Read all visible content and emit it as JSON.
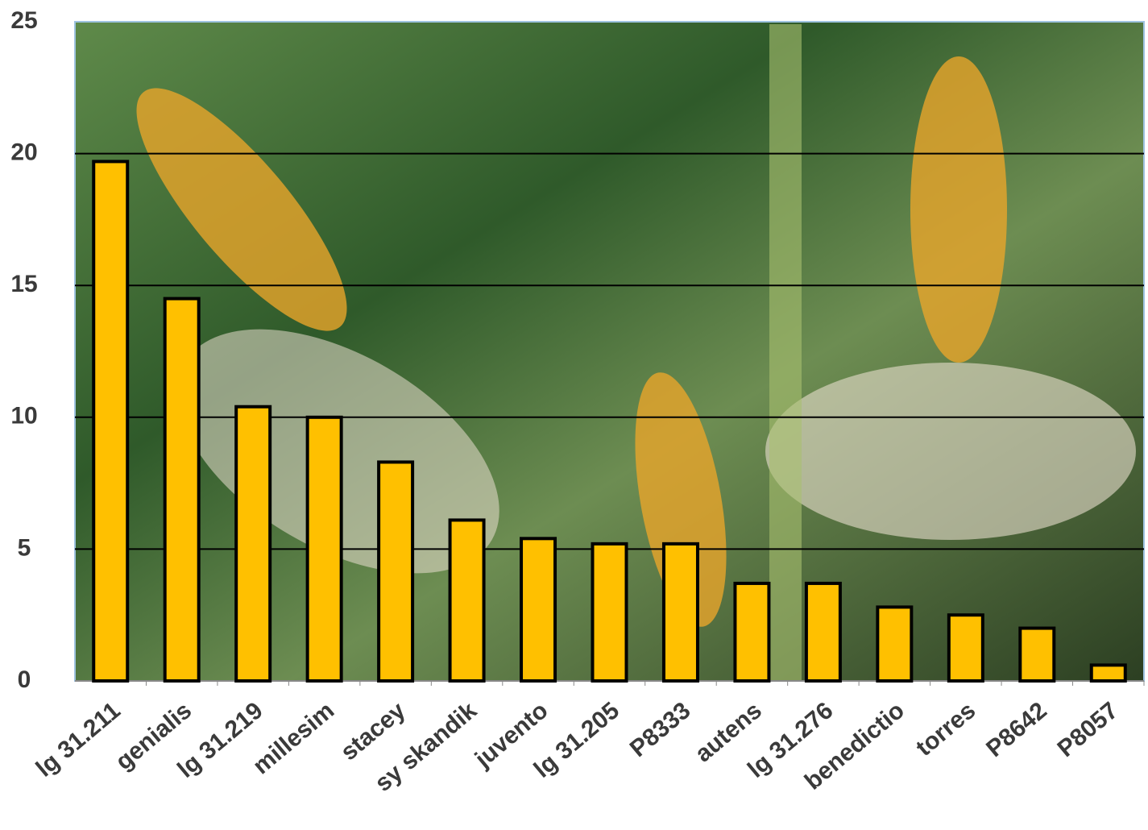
{
  "chart_data": {
    "type": "bar",
    "categories": [
      "lg 31.211",
      "genialis",
      "lg 31.219",
      "millesim",
      "stacey",
      "sy skandik",
      "juvento",
      "lg 31.205",
      "P8333",
      "autens",
      "lg 31.276",
      "benedictio",
      "torres",
      "P8642",
      "P8057"
    ],
    "values": [
      19.7,
      14.5,
      10.4,
      10.0,
      8.3,
      6.1,
      5.4,
      5.2,
      5.2,
      3.7,
      3.7,
      2.8,
      2.5,
      2.0,
      0.6
    ],
    "color": "#ffc000",
    "ylim": [
      0,
      25
    ],
    "yticks": [
      0,
      5,
      10,
      15,
      20,
      25
    ],
    "grid": true
  }
}
